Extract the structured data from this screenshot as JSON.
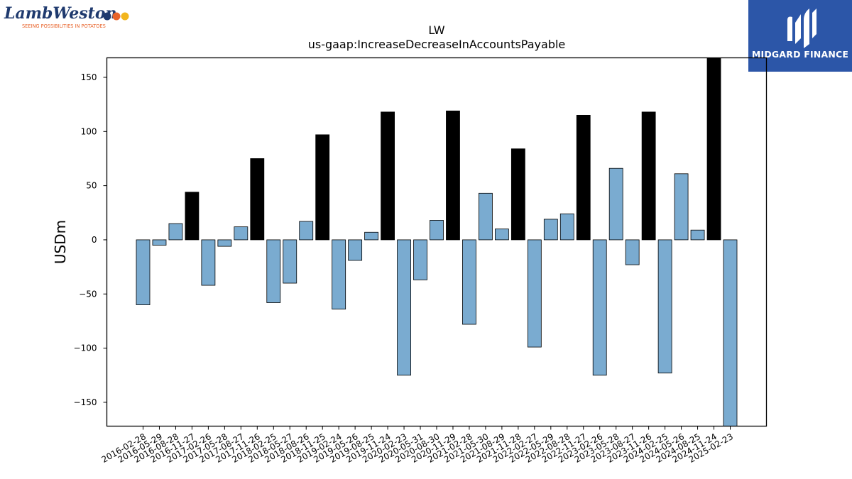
{
  "brand": {
    "name": "LambWeston",
    "tagline": "SEEING POSSIBILITIES IN POTATOES",
    "dot_colors": [
      "#1f3a6e",
      "#e8632a",
      "#f2b51d"
    ]
  },
  "partner": {
    "name": "MIDGARD FINANCE",
    "color": "#2c56a8"
  },
  "chart_data": {
    "type": "bar",
    "title": "LW",
    "subtitle": "us-gaap:IncreaseDecreaseInAccountsPayable",
    "ylabel": "USDm",
    "xlabel": "",
    "ylim": [
      -172,
      168
    ],
    "yticks": [
      -150,
      -100,
      -50,
      0,
      50,
      100,
      150
    ],
    "grid": false,
    "categories": [
      "2016-02-28",
      "2016-05-29",
      "2016-08-28",
      "2016-11-27",
      "2017-02-26",
      "2017-05-28",
      "2017-08-27",
      "2017-11-26",
      "2018-02-25",
      "2018-05-27",
      "2018-08-26",
      "2018-11-25",
      "2019-02-24",
      "2019-05-26",
      "2019-08-25",
      "2019-11-24",
      "2020-02-23",
      "2020-05-31",
      "2020-08-30",
      "2020-11-29",
      "2021-02-28",
      "2021-05-30",
      "2021-08-29",
      "2021-11-28",
      "2022-02-27",
      "2022-05-29",
      "2022-08-28",
      "2022-11-27",
      "2023-02-26",
      "2023-05-28",
      "2023-08-27",
      "2023-11-26",
      "2024-02-25",
      "2024-05-26",
      "2024-08-25",
      "2024-11-24",
      "2025-02-23"
    ],
    "values": [
      -60,
      -5,
      15,
      44,
      -42,
      -6,
      12,
      75,
      -58,
      -40,
      17,
      97,
      -64,
      -19,
      7,
      118,
      -125,
      -37,
      18,
      119,
      -78,
      43,
      10,
      84,
      -99,
      19,
      24,
      115,
      -125,
      66,
      -23,
      118,
      -123,
      61,
      9,
      168,
      -172
    ],
    "highlighted": [
      false,
      false,
      false,
      true,
      false,
      false,
      false,
      true,
      false,
      false,
      false,
      true,
      false,
      false,
      false,
      true,
      false,
      false,
      false,
      true,
      false,
      false,
      false,
      true,
      false,
      false,
      false,
      true,
      false,
      false,
      false,
      true,
      false,
      false,
      false,
      true,
      false
    ],
    "colors": {
      "bar": "#7aabd0",
      "highlight": "#000000",
      "edge": "#000000"
    }
  }
}
